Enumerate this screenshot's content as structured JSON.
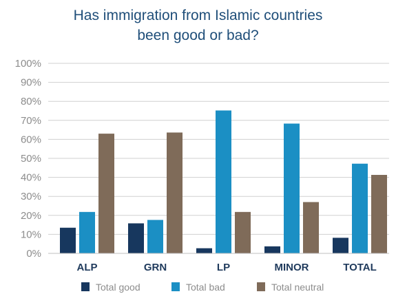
{
  "chart_data": {
    "type": "bar",
    "title": "Has immigration from Islamic countries\nbeen good or bad?",
    "xlabel": "",
    "ylabel": "",
    "categories": [
      "ALP",
      "GRN",
      "LP",
      "MINOR",
      "TOTAL"
    ],
    "series": [
      {
        "name": "Total good",
        "color": "#17375e",
        "values": [
          13.5,
          15.8,
          2.7,
          3.7,
          8.2
        ]
      },
      {
        "name": "Total bad",
        "color": "#1b8fc4",
        "values": [
          21.8,
          17.6,
          75.2,
          68.3,
          47.2
        ]
      },
      {
        "name": "Total neutral",
        "color": "#7f6b59",
        "values": [
          63,
          63.6,
          21.8,
          27,
          41.3
        ]
      }
    ],
    "ylim": [
      0,
      100
    ],
    "yticks": [
      "0%",
      "10%",
      "20%",
      "30%",
      "40%",
      "50%",
      "60%",
      "70%",
      "80%",
      "90%",
      "100%"
    ],
    "grid": true,
    "legend_position": "bottom"
  }
}
